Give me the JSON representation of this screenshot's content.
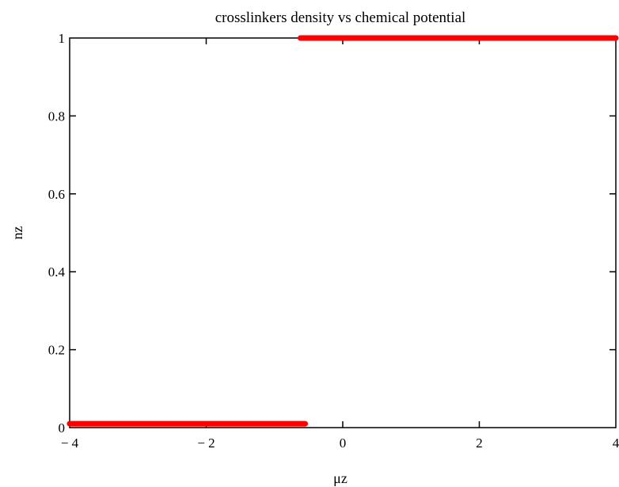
{
  "chart_data": {
    "type": "line",
    "title": "crosslinkers density vs chemical potential",
    "xlabel": "μz",
    "ylabel": "nz",
    "xlim": [
      -4,
      4
    ],
    "ylim": [
      0,
      1
    ],
    "x_ticks": [
      -4,
      -2,
      0,
      2,
      4
    ],
    "x_tick_labels": [
      "− 4",
      "− 2",
      "0",
      "2",
      "4"
    ],
    "y_ticks": [
      0,
      0.2,
      0.4,
      0.6,
      0.8,
      1
    ],
    "y_tick_labels": [
      "0",
      "0.2",
      "0.4",
      "0.6",
      "0.8",
      "1"
    ],
    "grid": false,
    "series": [
      {
        "color": "#ff0000",
        "segments": [
          [
            [
              -4,
              0.01
            ],
            [
              -0.55,
              0.01
            ]
          ],
          [
            [
              -0.62,
              1.0
            ],
            [
              4,
              1.0
            ]
          ]
        ]
      }
    ]
  }
}
